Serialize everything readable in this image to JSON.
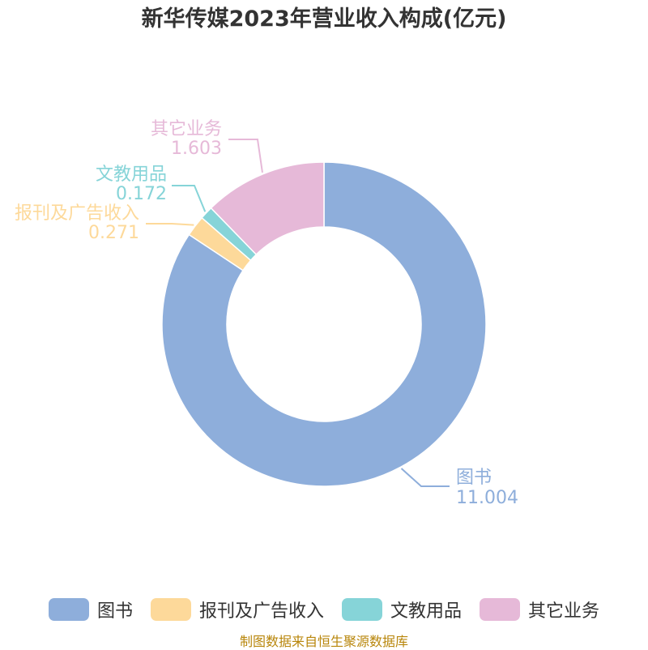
{
  "chart_data": {
    "type": "pie",
    "donut": true,
    "title": "新华传媒2023年营业收入构成(亿元)",
    "series": [
      {
        "name": "图书",
        "value": 11.004,
        "value_label": "11.004",
        "color": "#8eaedb"
      },
      {
        "name": "报刊及广告收入",
        "value": 0.271,
        "value_label": "0.271",
        "color": "#fdd99a"
      },
      {
        "name": "文教用品",
        "value": 0.172,
        "value_label": "0.172",
        "color": "#86d4d8"
      },
      {
        "name": "其它业务",
        "value": 1.603,
        "value_label": "1.603",
        "color": "#e6b9d8"
      }
    ],
    "legend_position": "bottom"
  },
  "source": "制图数据来自恒生聚源数据库"
}
